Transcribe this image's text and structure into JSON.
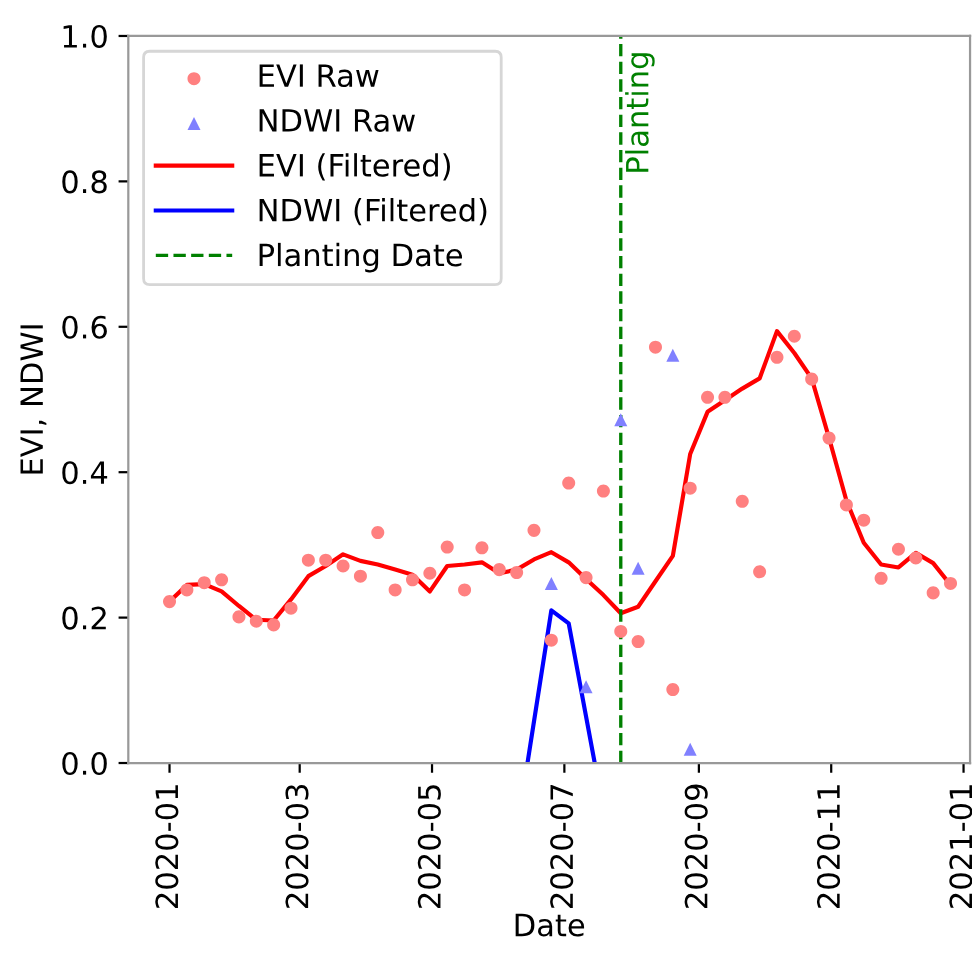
{
  "chart_data": {
    "type": "scatter",
    "xlabel": "Date",
    "ylabel": "EVI, NDWI",
    "x": [
      "2020-01-01",
      "2020-01-09",
      "2020-01-17",
      "2020-01-25",
      "2020-02-02",
      "2020-02-10",
      "2020-02-18",
      "2020-02-26",
      "2020-03-05",
      "2020-03-13",
      "2020-03-21",
      "2020-03-29",
      "2020-04-06",
      "2020-04-14",
      "2020-04-22",
      "2020-04-30",
      "2020-05-08",
      "2020-05-16",
      "2020-05-24",
      "2020-06-01",
      "2020-06-09",
      "2020-06-17",
      "2020-06-25",
      "2020-07-03",
      "2020-07-11",
      "2020-07-19",
      "2020-07-27",
      "2020-08-04",
      "2020-08-12",
      "2020-08-20",
      "2020-08-28",
      "2020-09-05",
      "2020-09-13",
      "2020-09-21",
      "2020-09-29",
      "2020-10-07",
      "2020-10-15",
      "2020-10-23",
      "2020-10-31",
      "2020-11-08",
      "2020-11-16",
      "2020-11-24",
      "2020-12-02",
      "2020-12-10",
      "2020-12-18",
      "2020-12-26"
    ],
    "series": [
      {
        "name": "EVI Raw",
        "marker": "circle",
        "color": "#ff8080",
        "values": [
          0.222,
          0.238,
          0.248,
          0.252,
          0.201,
          0.195,
          0.19,
          0.213,
          0.279,
          0.279,
          0.271,
          0.257,
          0.317,
          0.238,
          0.252,
          0.261,
          0.297,
          0.238,
          0.296,
          0.266,
          0.262,
          0.32,
          0.169,
          0.385,
          0.255,
          0.374,
          0.181,
          0.167,
          0.572,
          0.101,
          0.378,
          0.503,
          0.503,
          0.36,
          0.263,
          0.558,
          0.587,
          0.528,
          0.447,
          0.355,
          0.334,
          0.254,
          0.294,
          0.282,
          0.234,
          0.247
        ]
      },
      {
        "name": "NDWI Raw",
        "marker": "triangle",
        "color": "#8080ff",
        "x": [
          "2020-06-25",
          "2020-07-11",
          "2020-07-27",
          "2020-08-04",
          "2020-08-20",
          "2020-08-28"
        ],
        "values": [
          0.247,
          0.105,
          0.472,
          0.268,
          0.561,
          0.019
        ]
      },
      {
        "name": "EVI (Filtered)",
        "type": "line",
        "color": "#ff0000",
        "values": [
          0.222,
          0.245,
          0.246,
          0.236,
          0.216,
          0.197,
          0.196,
          0.225,
          0.257,
          0.271,
          0.287,
          0.278,
          0.273,
          0.266,
          0.259,
          0.236,
          0.271,
          0.273,
          0.276,
          0.261,
          0.266,
          0.28,
          0.29,
          0.276,
          0.253,
          0.231,
          0.206,
          0.215,
          0.25,
          0.285,
          0.425,
          0.483,
          0.499,
          0.515,
          0.529,
          0.594,
          0.564,
          0.529,
          0.447,
          0.361,
          0.303,
          0.273,
          0.269,
          0.289,
          0.275,
          0.245
        ]
      },
      {
        "name": "NDWI (Filtered)",
        "type": "line",
        "color": "#0000ff",
        "x": [
          "2020-06-14",
          "2020-06-25",
          "2020-07-03",
          "2020-07-15"
        ],
        "values": [
          0,
          0.21,
          0.192,
          0
        ]
      },
      {
        "name": "Planting Date",
        "type": "line",
        "line_style": "dashed",
        "color": "#008000",
        "x": [
          "2020-07-27",
          "2020-07-27"
        ],
        "values": [
          0,
          1
        ]
      }
    ],
    "annotations": [
      {
        "text": "Planting",
        "x": "2020-07-27",
        "y": 0.98
      }
    ],
    "xlim": [
      "2019-12-13",
      "2021-01-04"
    ],
    "xticks": [
      "2020-01",
      "2020-03",
      "2020-05",
      "2020-07",
      "2020-09",
      "2020-11",
      "2021-01"
    ],
    "ylim": [
      0,
      1
    ],
    "yticks": [
      {
        "value": 0,
        "label": "0.0"
      },
      {
        "value": 0.2,
        "label": "0.2"
      },
      {
        "value": 0.4,
        "label": "0.4"
      },
      {
        "value": 0.6,
        "label": "0.6"
      },
      {
        "value": 0.8,
        "label": "0.8"
      },
      {
        "value": 1,
        "label": "1.0"
      }
    ],
    "legend": "top left",
    "grid": false
  }
}
